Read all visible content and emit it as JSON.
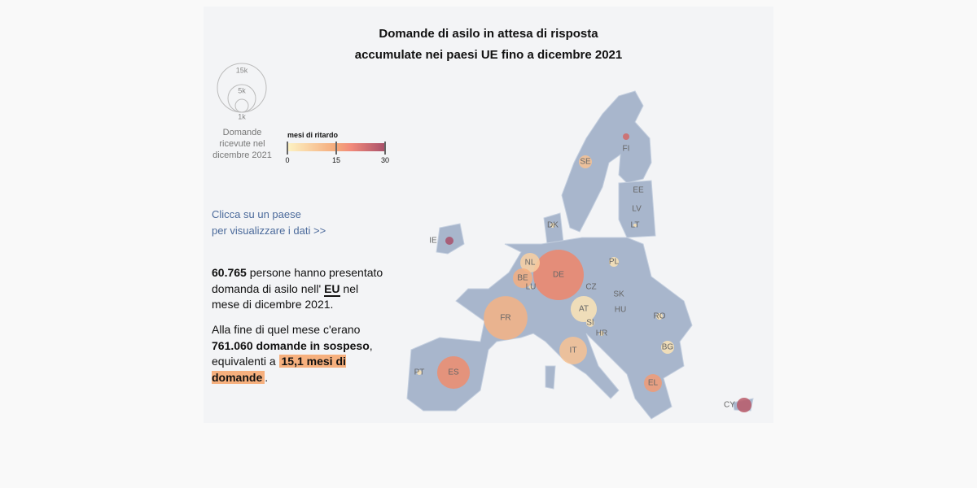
{
  "title": {
    "line1": "Domande di asilo in attesa di risposta",
    "line2": "accumulate nei paesi UE fino a dicembre 2021"
  },
  "size_legend": {
    "labels": [
      "15k",
      "5k",
      "1k"
    ],
    "caption": [
      "Domande",
      "ricevute nel",
      "dicembre 2021"
    ]
  },
  "color_legend": {
    "title": "mesi di ritardo",
    "ticks": [
      "0",
      "15",
      "30"
    ],
    "colors": [
      "#fdf3c4",
      "#f4a97a",
      "#a8506a"
    ]
  },
  "hint": {
    "line1": "Clicca su un paese",
    "line2": "per visualizzare i dati >>"
  },
  "summary": {
    "count": "60.765",
    "text1": " persone hanno presentato domanda di asilo nell' ",
    "eu": "EU",
    "text2": " nel mese di dicembre 2021.",
    "text3": "Alla fine di quel mese c'erano ",
    "pending": "761.060 domande in sospeso",
    "text4": ", equivalenti a ",
    "months": "15,1 mesi di domande",
    "text5": "."
  },
  "chart_data": {
    "type": "bubble-map",
    "size_unit": "domande",
    "color_unit": "mesi di ritardo",
    "color_range": [
      0,
      30
    ],
    "countries": [
      {
        "code": "DE",
        "apps": 16000,
        "months": 20
      },
      {
        "code": "FR",
        "apps": 12000,
        "months": 13
      },
      {
        "code": "ES",
        "apps": 6700,
        "months": 19
      },
      {
        "code": "IT",
        "apps": 4800,
        "months": 10
      },
      {
        "code": "AT",
        "apps": 4300,
        "months": 3
      },
      {
        "code": "NL",
        "apps": 2400,
        "months": 7
      },
      {
        "code": "BE",
        "apps": 2400,
        "months": 14
      },
      {
        "code": "EL",
        "apps": 2000,
        "months": 17
      },
      {
        "code": "BG",
        "apps": 1070,
        "months": 3
      },
      {
        "code": "SE",
        "apps": 1070,
        "months": 10
      },
      {
        "code": "CY",
        "apps": 1350,
        "months": 28
      },
      {
        "code": "PL",
        "apps": 600,
        "months": 3
      },
      {
        "code": "IE",
        "apps": 420,
        "months": 30
      },
      {
        "code": "FI",
        "apps": 270,
        "months": 25
      },
      {
        "code": "SI",
        "apps": 420,
        "months": 3
      },
      {
        "code": "RO",
        "apps": 270,
        "months": 3
      },
      {
        "code": "HR",
        "apps": 150,
        "months": 3
      },
      {
        "code": "PT",
        "apps": 150,
        "months": 3
      },
      {
        "code": "DK",
        "apps": 150,
        "months": 3
      },
      {
        "code": "LT",
        "apps": 70,
        "months": 3
      },
      {
        "code": "LU",
        "apps": 100,
        "months": 5
      },
      {
        "code": "EE",
        "apps": 0,
        "months": 0
      },
      {
        "code": "LV",
        "apps": 0,
        "months": 0
      },
      {
        "code": "CZ",
        "apps": 0,
        "months": 0
      },
      {
        "code": "SK",
        "apps": 0,
        "months": 0
      },
      {
        "code": "HU",
        "apps": 0,
        "months": 0
      }
    ]
  }
}
